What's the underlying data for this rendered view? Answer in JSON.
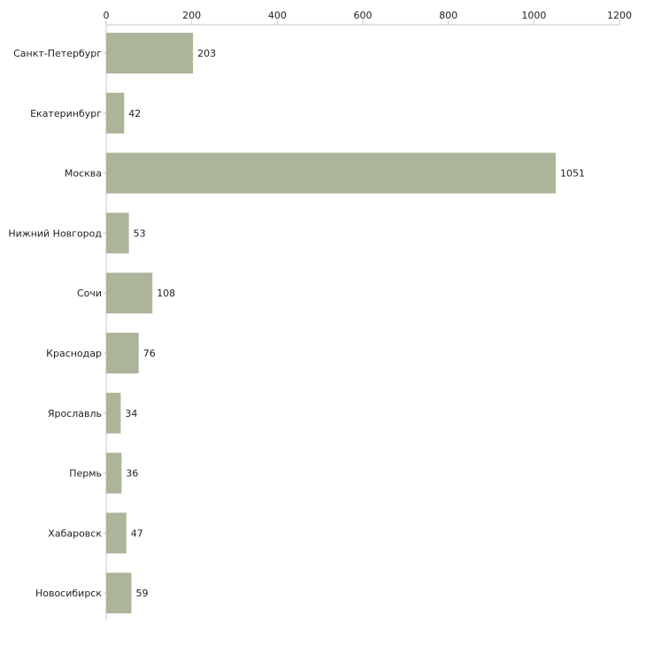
{
  "chart_data": {
    "type": "bar",
    "orientation": "horizontal",
    "title": "",
    "xlabel": "",
    "ylabel": "",
    "xlim": [
      0,
      1200
    ],
    "ticks": [
      0,
      200,
      400,
      600,
      800,
      1000,
      1200
    ],
    "tick_labels": [
      "0",
      "200",
      "400",
      "600",
      "800",
      "1000",
      "1200"
    ],
    "axis_position": "top",
    "grid": false,
    "bar_color": "#acb499",
    "categories": [
      "Санкт-Петербург",
      "Екатеринбург",
      "Москва",
      "Нижний Новгород",
      "Сочи",
      "Краснодар",
      "Ярославль",
      "Пермь",
      "Хабаровск",
      "Новосибирск"
    ],
    "values": [
      203,
      42,
      1051,
      53,
      108,
      76,
      34,
      36,
      47,
      59
    ],
    "value_labels": [
      "203",
      "42",
      "1051",
      "53",
      "108",
      "76",
      "34",
      "36",
      "47",
      "59"
    ]
  }
}
